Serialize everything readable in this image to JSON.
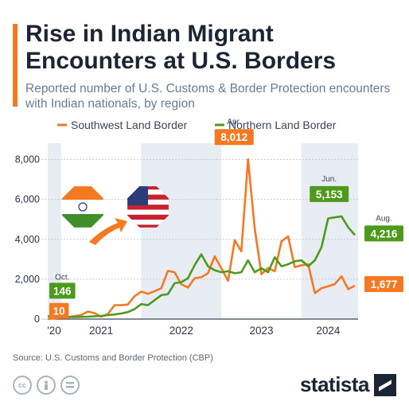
{
  "header": {
    "title": "Rise in Indian Migrant Encounters at U.S. Borders",
    "subtitle": "Reported number of U.S. Customs & Border Protection encounters with Indian nationals, by region"
  },
  "footer": {
    "source": "Source: U.S. Customs and Border Protection (CBP)",
    "brand": "statista"
  },
  "colors": {
    "southwest": "#f47920",
    "northern": "#4e9a1c",
    "shade": "#e8ecf3",
    "grid": "#c6cdd6",
    "axis_text": "#2b3645"
  },
  "icons": [
    "india-flag-icon",
    "usa-flag-icon",
    "arrow-icon",
    "cc-icon",
    "person-icon",
    "equal-icon",
    "statista-logo-icon"
  ],
  "chart_data": {
    "type": "line",
    "x_label_months": [
      "'20",
      "2021",
      "2022",
      "2023",
      "2024"
    ],
    "yticks": [
      0,
      2000,
      4000,
      6000,
      8000
    ],
    "ytick_labels": [
      "0",
      "2,000",
      "4,000",
      "6,000",
      "8,000"
    ],
    "ylim": [
      0,
      8500
    ],
    "x_range": [
      "2020-10",
      "2024-08"
    ],
    "legend_position": "top",
    "grid": true,
    "series": [
      {
        "name": "Southwest Land Border",
        "color": "#f47920",
        "points": [
          [
            "2020-10",
            10
          ],
          [
            "2020-11",
            30
          ],
          [
            "2020-12",
            80
          ],
          [
            "2021-01",
            90
          ],
          [
            "2021-02",
            150
          ],
          [
            "2021-03",
            200
          ],
          [
            "2021-04",
            380
          ],
          [
            "2021-05",
            300
          ],
          [
            "2021-06",
            120
          ],
          [
            "2021-07",
            250
          ],
          [
            "2021-08",
            700
          ],
          [
            "2021-09",
            700
          ],
          [
            "2021-10",
            730
          ],
          [
            "2021-11",
            1150
          ],
          [
            "2021-12",
            1380
          ],
          [
            "2022-01",
            1270
          ],
          [
            "2022-02",
            1400
          ],
          [
            "2022-03",
            1550
          ],
          [
            "2022-04",
            2420
          ],
          [
            "2022-05",
            2350
          ],
          [
            "2022-06",
            1750
          ],
          [
            "2022-07",
            1580
          ],
          [
            "2022-08",
            2050
          ],
          [
            "2022-09",
            2100
          ],
          [
            "2022-10",
            2300
          ],
          [
            "2022-11",
            3150
          ],
          [
            "2022-12",
            2550
          ],
          [
            "2023-01",
            1920
          ],
          [
            "2023-02",
            3950
          ],
          [
            "2023-03",
            3400
          ],
          [
            "2023-04",
            8012
          ],
          [
            "2023-05",
            4550
          ],
          [
            "2023-06",
            2250
          ],
          [
            "2023-07",
            2560
          ],
          [
            "2023-08",
            2400
          ],
          [
            "2023-09",
            3900
          ],
          [
            "2023-10",
            4150
          ],
          [
            "2023-11",
            2600
          ],
          [
            "2023-12",
            2700
          ],
          [
            "2024-01",
            2750
          ],
          [
            "2024-02",
            1300
          ],
          [
            "2024-03",
            1550
          ],
          [
            "2024-04",
            1650
          ],
          [
            "2024-05",
            1750
          ],
          [
            "2024-06",
            2150
          ],
          [
            "2024-07",
            1500
          ],
          [
            "2024-08",
            1677
          ]
        ]
      },
      {
        "name": "Northern Land Border",
        "color": "#4e9a1c",
        "points": [
          [
            "2020-10",
            146
          ],
          [
            "2020-11",
            130
          ],
          [
            "2020-12",
            110
          ],
          [
            "2021-01",
            100
          ],
          [
            "2021-02",
            100
          ],
          [
            "2021-03",
            110
          ],
          [
            "2021-04",
            120
          ],
          [
            "2021-05",
            140
          ],
          [
            "2021-06",
            160
          ],
          [
            "2021-07",
            200
          ],
          [
            "2021-08",
            230
          ],
          [
            "2021-09",
            280
          ],
          [
            "2021-10",
            350
          ],
          [
            "2021-11",
            500
          ],
          [
            "2021-12",
            750
          ],
          [
            "2022-01",
            700
          ],
          [
            "2022-02",
            950
          ],
          [
            "2022-03",
            1200
          ],
          [
            "2022-04",
            1250
          ],
          [
            "2022-05",
            1800
          ],
          [
            "2022-06",
            1850
          ],
          [
            "2022-07",
            2050
          ],
          [
            "2022-08",
            2700
          ],
          [
            "2022-09",
            3250
          ],
          [
            "2022-10",
            2650
          ],
          [
            "2022-11",
            2450
          ],
          [
            "2022-12",
            2350
          ],
          [
            "2023-01",
            2400
          ],
          [
            "2023-02",
            2300
          ],
          [
            "2023-03",
            2350
          ],
          [
            "2023-04",
            2950
          ],
          [
            "2023-05",
            2350
          ],
          [
            "2023-06",
            2550
          ],
          [
            "2023-07",
            2350
          ],
          [
            "2023-08",
            3100
          ],
          [
            "2023-09",
            2650
          ],
          [
            "2023-10",
            2750
          ],
          [
            "2023-11",
            2900
          ],
          [
            "2023-12",
            2950
          ],
          [
            "2024-01",
            2650
          ],
          [
            "2024-02",
            2950
          ],
          [
            "2024-03",
            3600
          ],
          [
            "2024-04",
            5050
          ],
          [
            "2024-05",
            5100
          ],
          [
            "2024-06",
            5153
          ],
          [
            "2024-07",
            4600
          ],
          [
            "2024-08",
            4216
          ]
        ]
      }
    ],
    "annotations": [
      {
        "series": 0,
        "date": "2020-10",
        "value": 10,
        "label": "10",
        "month_label": ""
      },
      {
        "series": 1,
        "date": "2020-10",
        "value": 146,
        "label": "146",
        "month_label": "Oct."
      },
      {
        "series": 0,
        "date": "2023-04",
        "value": 8012,
        "label": "8,012",
        "month_label": "Apr."
      },
      {
        "series": 1,
        "date": "2024-06",
        "value": 5153,
        "label": "5,153",
        "month_label": "Jun."
      },
      {
        "series": 1,
        "date": "2024-08",
        "value": 4216,
        "label": "4,216",
        "month_label": "Aug."
      },
      {
        "series": 0,
        "date": "2024-08",
        "value": 1677,
        "label": "1,677",
        "month_label": ""
      }
    ]
  }
}
